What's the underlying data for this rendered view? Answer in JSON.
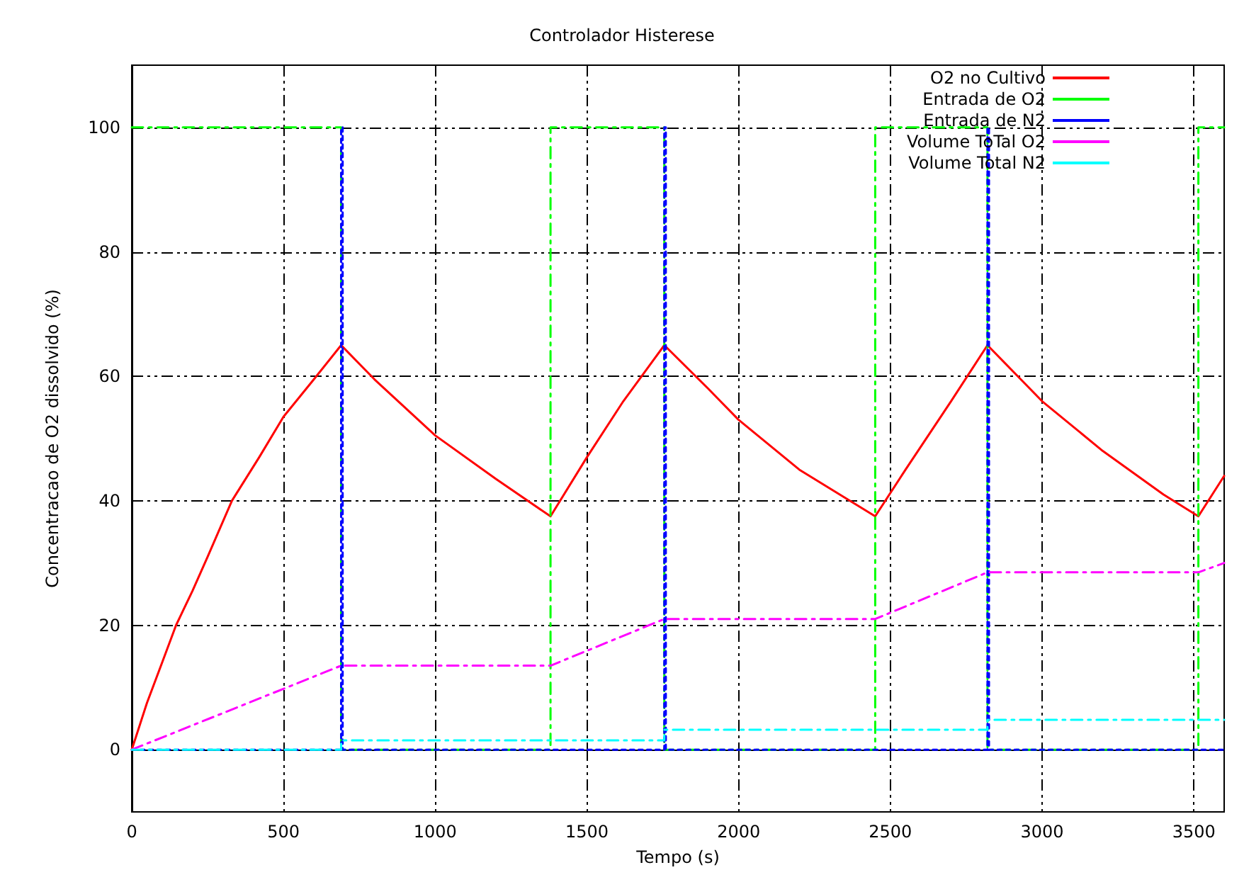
{
  "chart_data": {
    "type": "line",
    "title": "Controlador Histerese",
    "xlabel": "Tempo (s)",
    "ylabel": "Concentracao de O2 dissolvido (%)",
    "xlim": [
      0,
      3600
    ],
    "xticks": [
      0,
      500,
      1000,
      1500,
      2000,
      2500,
      3000,
      3500
    ],
    "ylim": [
      -10,
      110
    ],
    "yticks": [
      0,
      20,
      40,
      60,
      80,
      100
    ],
    "grid": true,
    "legend": "top right",
    "marker": "none",
    "series": [
      {
        "name": "O2 no Cultivo",
        "color": "#ff0000",
        "line_style": "solid",
        "x": [
          0,
          50,
          100,
          146,
          200,
          250,
          330,
          420,
          500,
          600,
          690,
          800,
          1000,
          1200,
          1380,
          1500,
          1620,
          1755,
          1900,
          2000,
          2200,
          2450,
          2550,
          2700,
          2820,
          3000,
          3200,
          3400,
          3515,
          3600
        ],
        "values": [
          0,
          7.5,
          14,
          20,
          25.5,
          31,
          40,
          47,
          53.5,
          59.5,
          65,
          59.5,
          50.5,
          43.5,
          37.5,
          47,
          56,
          65,
          58,
          53,
          45,
          37.5,
          45,
          56,
          65,
          56,
          48,
          41,
          37.5,
          44
        ]
      },
      {
        "name": "Entrada de O2",
        "color": "#00ff00",
        "line_style": "dashed",
        "x": [
          0,
          690,
          690,
          1380,
          1380,
          1755,
          1755,
          2450,
          2450,
          2820,
          2820,
          3515,
          3515,
          3600
        ],
        "values": [
          100,
          100,
          0,
          0,
          100,
          100,
          0,
          0,
          100,
          100,
          0,
          0,
          100,
          100
        ]
      },
      {
        "name": "Entrada de N2",
        "color": "#0000ff",
        "line_style": "dotted",
        "x": [
          0,
          690,
          690,
          695,
          695,
          1755,
          1755,
          1760,
          1760,
          2820,
          2820,
          2825,
          2825,
          3600
        ],
        "values": [
          0,
          0,
          100,
          100,
          0,
          0,
          100,
          100,
          0,
          0,
          100,
          100,
          0,
          0
        ]
      },
      {
        "name": "Volume ToTal O2",
        "color": "#ff00ff",
        "line_style": "dashed",
        "x": [
          0,
          690,
          1380,
          1755,
          2450,
          2820,
          3515,
          3600
        ],
        "values": [
          0,
          13.5,
          13.5,
          21,
          21,
          28.5,
          28.5,
          30
        ]
      },
      {
        "name": "Volume Total N2",
        "color": "#00ffff",
        "line_style": "dashed",
        "x": [
          0,
          690,
          690,
          1755,
          1755,
          2820,
          2820,
          3600
        ],
        "values": [
          0,
          0,
          1.5,
          1.5,
          3.2,
          3.2,
          4.8,
          4.8
        ]
      }
    ]
  }
}
